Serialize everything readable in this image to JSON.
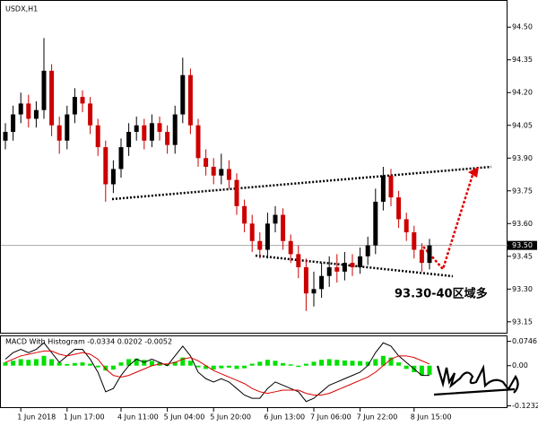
{
  "chart_data": [
    {
      "type": "candlestick",
      "title": "USDX,H1",
      "annotation": "93.30-40区域多",
      "up_color": "#000000",
      "down_color": "#cc0000",
      "categories": [
        null,
        null,
        "1 Jun 2018",
        null,
        null,
        null,
        null,
        null,
        "1 Jun 17:00",
        null,
        null,
        null,
        null,
        null,
        null,
        "4 Jun 11:00",
        null,
        null,
        null,
        null,
        null,
        "5 Jun 04:00",
        null,
        null,
        null,
        null,
        null,
        "5 Jun 20:00",
        null,
        null,
        null,
        null,
        null,
        null,
        "6 Jun 13:00",
        null,
        null,
        null,
        null,
        null,
        "7 Jun 06:00",
        null,
        null,
        null,
        null,
        null,
        "7 Jun 22:00",
        null,
        null,
        null,
        null,
        null,
        null,
        "8 Jun 15:00",
        null,
        null
      ],
      "open": [
        93.98,
        94.02,
        94.1,
        94.15,
        94.08,
        94.12,
        94.3,
        94.05,
        93.98,
        94.1,
        94.18,
        94.15,
        94.05,
        93.95,
        93.78,
        93.85,
        93.95,
        94.02,
        94.05,
        93.98,
        94.06,
        94.02,
        93.96,
        94.1,
        94.28,
        94.05,
        93.9,
        93.86,
        93.82,
        93.85,
        93.8,
        93.68,
        93.6,
        93.52,
        93.48,
        93.6,
        93.64,
        93.52,
        93.46,
        93.4,
        93.28,
        93.3,
        93.36,
        93.4,
        93.38,
        93.42,
        93.4,
        93.45,
        93.5,
        93.7,
        93.82,
        93.72,
        93.62,
        93.56,
        93.48,
        93.42
      ],
      "high": [
        94.06,
        94.14,
        94.2,
        94.19,
        94.16,
        94.45,
        94.33,
        94.09,
        94.14,
        94.22,
        94.21,
        94.18,
        94.08,
        93.98,
        93.89,
        93.99,
        94.06,
        94.09,
        94.08,
        94.1,
        94.09,
        94.05,
        94.14,
        94.36,
        94.31,
        94.08,
        93.94,
        93.9,
        93.92,
        93.89,
        93.83,
        93.71,
        93.64,
        93.56,
        93.65,
        93.68,
        93.67,
        93.55,
        93.5,
        93.44,
        93.38,
        93.42,
        93.45,
        93.46,
        93.47,
        93.46,
        93.49,
        93.54,
        93.76,
        93.86,
        93.85,
        93.75,
        93.65,
        93.59,
        93.51,
        93.53
      ],
      "low": [
        93.94,
        93.98,
        94.06,
        94.04,
        94.04,
        94.08,
        94.0,
        93.92,
        93.94,
        94.06,
        94.11,
        94.01,
        93.91,
        93.7,
        93.74,
        93.81,
        93.91,
        93.98,
        93.94,
        93.95,
        93.98,
        93.92,
        93.92,
        94.06,
        94.01,
        93.86,
        93.82,
        93.78,
        93.78,
        93.76,
        93.64,
        93.56,
        93.47,
        93.44,
        93.44,
        93.56,
        93.48,
        93.42,
        93.35,
        93.2,
        93.22,
        93.26,
        93.31,
        93.33,
        93.34,
        93.36,
        93.37,
        93.41,
        93.46,
        93.66,
        93.68,
        93.58,
        93.52,
        93.44,
        93.38,
        93.39
      ],
      "close": [
        94.02,
        94.1,
        94.15,
        94.08,
        94.12,
        94.3,
        94.05,
        93.98,
        94.1,
        94.18,
        94.15,
        94.05,
        93.95,
        93.78,
        93.85,
        93.95,
        94.02,
        94.05,
        93.98,
        94.06,
        94.02,
        93.96,
        94.1,
        94.28,
        94.05,
        93.9,
        93.86,
        93.82,
        93.85,
        93.8,
        93.68,
        93.6,
        93.52,
        93.48,
        93.6,
        93.64,
        93.52,
        93.46,
        93.4,
        93.28,
        93.3,
        93.36,
        93.4,
        93.38,
        93.42,
        93.4,
        93.45,
        93.5,
        93.7,
        93.82,
        93.72,
        93.62,
        93.56,
        93.48,
        93.42,
        93.5
      ],
      "current_price": {
        "value": 93.5,
        "label": "93.50"
      },
      "ylim": [
        93.1,
        94.62
      ],
      "yticks": [
        {
          "value": 94.5,
          "label": "94.50"
        },
        94.35,
        {
          "value": 94.2,
          "label": "94.20"
        },
        94.05,
        {
          "value": 93.9,
          "label": "93.90"
        },
        93.75,
        {
          "value": 93.6,
          "label": "93.60"
        },
        93.45,
        {
          "value": 93.3,
          "label": "93.30"
        },
        93.15
      ]
    },
    {
      "type": "macd",
      "title": "MACD With Histogram -0.0334 0.0202 -0.0052",
      "ylim": [
        -0.13,
        0.09
      ],
      "yticks": [
        0.0746,
        {
          "value": 0,
          "label": "0.00"
        },
        -0.1232
      ],
      "series": [
        {
          "color": "#00e000",
          "values": [
            0.01,
            0.015,
            0.02,
            0.018,
            0.02,
            0.03,
            0.02,
            0.01,
            0.005,
            0.008,
            0.01,
            0.006,
            -0.005,
            -0.015,
            -0.012,
            0.01,
            0.02,
            0.022,
            0.018,
            0.015,
            0.01,
            0.006,
            0.012,
            0.025,
            0.015,
            -0.005,
            -0.01,
            -0.012,
            -0.008,
            -0.006,
            -0.01,
            -0.008,
            0.006,
            0.012,
            0.018,
            0.015,
            0.008,
            0.004,
            -0.004,
            0.006,
            0.012,
            0.018,
            0.02,
            0.018,
            0.016,
            0.015,
            0.014,
            0.012,
            0.02,
            0.03,
            0.025,
            0.01,
            -0.01,
            -0.02,
            -0.03,
            -0.028
          ]
        },
        {
          "color": "#000000",
          "values": [
            0.02,
            0.04,
            0.05,
            0.04,
            0.05,
            0.07,
            0.04,
            0.01,
            0.03,
            0.05,
            0.05,
            0.02,
            -0.02,
            -0.08,
            -0.07,
            -0.03,
            0.0,
            0.02,
            0.01,
            0.02,
            0.01,
            0.0,
            0.03,
            0.06,
            0.03,
            -0.02,
            -0.04,
            -0.05,
            -0.04,
            -0.05,
            -0.07,
            -0.09,
            -0.1,
            -0.1,
            -0.07,
            -0.05,
            -0.06,
            -0.07,
            -0.08,
            -0.11,
            -0.1,
            -0.08,
            -0.06,
            -0.05,
            -0.04,
            -0.03,
            -0.02,
            0.0,
            0.04,
            0.07,
            0.06,
            0.03,
            0.01,
            -0.01,
            -0.03,
            -0.03
          ]
        },
        {
          "color": "#dd0000",
          "values": [
            0.01,
            0.02,
            0.03,
            0.035,
            0.04,
            0.045,
            0.045,
            0.035,
            0.03,
            0.035,
            0.04,
            0.035,
            0.02,
            -0.01,
            -0.03,
            -0.035,
            -0.03,
            -0.02,
            -0.01,
            0.0,
            0.005,
            0.005,
            0.01,
            0.02,
            0.025,
            0.015,
            0.0,
            -0.015,
            -0.025,
            -0.035,
            -0.045,
            -0.055,
            -0.07,
            -0.08,
            -0.085,
            -0.08,
            -0.075,
            -0.075,
            -0.075,
            -0.085,
            -0.09,
            -0.09,
            -0.085,
            -0.075,
            -0.065,
            -0.055,
            -0.045,
            -0.035,
            -0.02,
            0.0,
            0.02,
            0.03,
            0.03,
            0.025,
            0.015,
            0.005
          ]
        }
      ]
    }
  ]
}
